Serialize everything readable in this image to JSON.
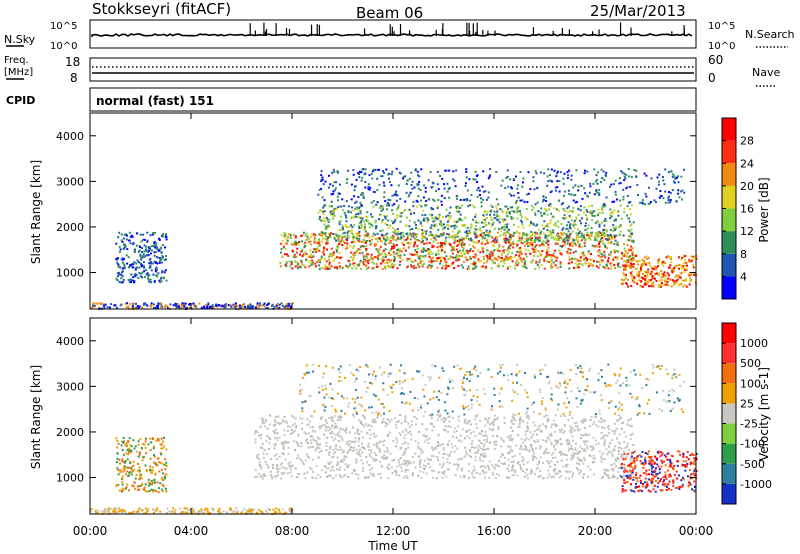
{
  "header": {
    "station": "Stokkseyri (fitACF)",
    "beam": "Beam 06",
    "date": "25/Mar/2013"
  },
  "strip_panels": {
    "nsky": {
      "label": "N.Sky",
      "tick_top": "10^5",
      "tick_bottom": "10^0"
    },
    "nsearch": {
      "label": "N.Search",
      "tick_top": "10^5",
      "tick_bottom": "10^0"
    },
    "freq": {
      "label_top": "Freq.",
      "label_bottom": "[MHz]",
      "tick_top": "18",
      "tick_bottom": "8"
    },
    "nave": {
      "label": "Nave",
      "tick_top": "60",
      "tick_bottom": "0"
    },
    "cpid": {
      "label": "CPID",
      "value": "normal (fast) 151"
    }
  },
  "chart_data": [
    {
      "type": "heatmap",
      "quantity": "Power",
      "ylabel": "Slant Range [km]",
      "xlabel": "Time UT",
      "ylim": [
        200,
        4500
      ],
      "y_ticks": [
        "1000",
        "2000",
        "3000",
        "4000"
      ],
      "x_ticks": [
        "00:00",
        "04:00",
        "08:00",
        "12:00",
        "16:00",
        "20:00",
        "00:00"
      ],
      "colorbar": {
        "label": "Power [dB]",
        "ticks": [
          "4",
          "8",
          "12",
          "16",
          "20",
          "24",
          "28"
        ],
        "colors": [
          "#0000ff",
          "#1f57b0",
          "#2f8f5a",
          "#7fcf3f",
          "#e0d020",
          "#f08a10",
          "#ff3010",
          "#ff0000"
        ]
      }
    },
    {
      "type": "heatmap",
      "quantity": "Velocity",
      "ylabel": "Slant Range [km]",
      "xlabel": "Time UT",
      "ylim": [
        200,
        4500
      ],
      "y_ticks": [
        "1000",
        "2000",
        "3000",
        "4000"
      ],
      "x_ticks": [
        "00:00",
        "04:00",
        "08:00",
        "12:00",
        "16:00",
        "20:00",
        "00:00"
      ],
      "colorbar": {
        "label": "Velocity [m s-1]",
        "ticks": [
          "1000",
          "500",
          "100",
          "25",
          "-25",
          "-100",
          "-500",
          "-1000"
        ],
        "colors": [
          "#1530c8",
          "#2f7fa0",
          "#2f9e4a",
          "#7fd03f",
          "#c8c8c0",
          "#f0a000",
          "#f07010",
          "#ff3030",
          "#ff0000"
        ]
      }
    }
  ],
  "x_axis_label": "Time UT"
}
